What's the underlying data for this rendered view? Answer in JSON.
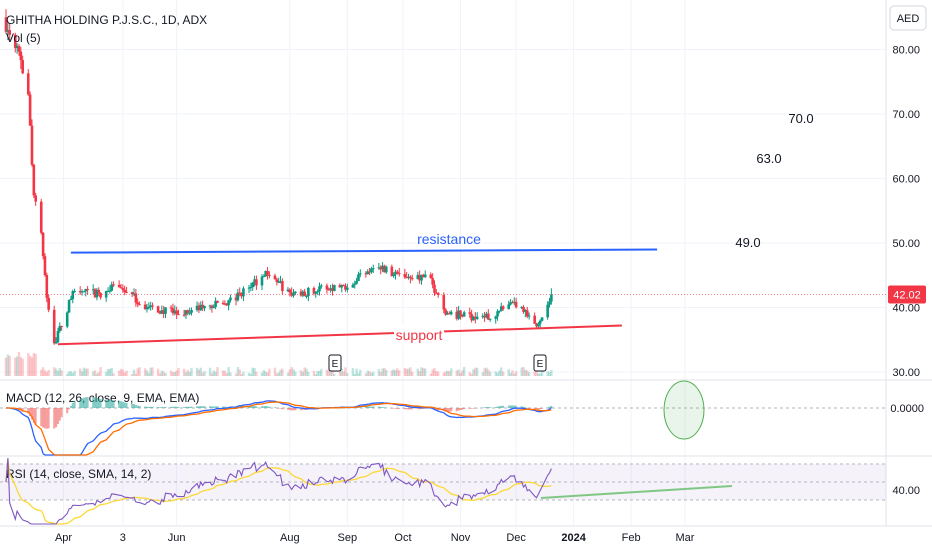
{
  "header": {
    "symbol_title": "GHITHA HOLDING P.J.S.C., 1D, ADX",
    "volume_label": "Vol (5)",
    "currency": "AED"
  },
  "chart_data": [
    {
      "type": "candlestick",
      "series_name": "GHITHA HOLDING P.J.S.C.",
      "interval": "1D",
      "exchange": "ADX",
      "currency": "AED",
      "last_price": "42.02",
      "ylim": [
        28,
        86
      ],
      "y_ticks": [
        "80.00",
        "70.00",
        "60.00",
        "50.00",
        "40.00",
        "30.00"
      ],
      "x_ticks": [
        "Apr",
        "3",
        "Jun",
        "Aug",
        "Sep",
        "Oct",
        "Nov",
        "Dec",
        "2024",
        "Feb",
        "Mar"
      ],
      "approx_close_path": [
        {
          "date": "2023-03-01",
          "close": 84.0
        },
        {
          "date": "2023-03-08",
          "close": 80.5
        },
        {
          "date": "2023-03-13",
          "close": 72.0
        },
        {
          "date": "2023-03-16",
          "close": 58.0
        },
        {
          "date": "2023-03-20",
          "close": 51.0
        },
        {
          "date": "2023-03-23",
          "close": 42.0
        },
        {
          "date": "2023-03-27",
          "close": 34.5
        },
        {
          "date": "2023-04-03",
          "close": 39.5
        },
        {
          "date": "2023-04-06",
          "close": 42.5
        },
        {
          "date": "2023-04-20",
          "close": 42.0
        },
        {
          "date": "2023-05-01",
          "close": 43.5
        },
        {
          "date": "2023-05-15",
          "close": 40.0
        },
        {
          "date": "2023-06-01",
          "close": 39.0
        },
        {
          "date": "2023-07-01",
          "close": 41.0
        },
        {
          "date": "2023-07-20",
          "close": 45.5
        },
        {
          "date": "2023-08-01",
          "close": 42.0
        },
        {
          "date": "2023-08-20",
          "close": 43.0
        },
        {
          "date": "2023-09-01",
          "close": 43.5
        },
        {
          "date": "2023-09-15",
          "close": 46.5
        },
        {
          "date": "2023-10-01",
          "close": 45.0
        },
        {
          "date": "2023-10-15",
          "close": 44.5
        },
        {
          "date": "2023-10-25",
          "close": 39.0
        },
        {
          "date": "2023-11-15",
          "close": 38.5
        },
        {
          "date": "2023-12-01",
          "close": 40.5
        },
        {
          "date": "2023-12-12",
          "close": 37.0
        },
        {
          "date": "2023-12-20",
          "close": 42.02
        }
      ],
      "lines": [
        {
          "label": "resistance",
          "color": "#2962ff",
          "start": {
            "date": "2023-04-05",
            "price": 48.5
          },
          "end": {
            "date": "2024-02-15",
            "price": 49.0
          }
        },
        {
          "label": "support",
          "color": "#f23645",
          "start": {
            "date": "2023-03-29",
            "price": 34.3
          },
          "end": {
            "date": "2024-01-27",
            "price": 37.2
          }
        }
      ],
      "targets": [
        "49.0",
        "63.0",
        "70.0"
      ],
      "earnings_markers": [
        "E",
        "E"
      ]
    },
    {
      "type": "line",
      "title": "MACD (12, 26, close, 9, EMA, EMA)",
      "zero_label": "0.0000",
      "series": [
        {
          "name": "MACD",
          "color": "#2962ff"
        },
        {
          "name": "Signal",
          "color": "#ff6d00"
        }
      ],
      "histogram_colors": {
        "positive": "#26a69a",
        "negative": "#ef5350"
      },
      "annotation": "ellipse"
    },
    {
      "type": "line",
      "title": "RSI (14, close, SMA, 14, 2)",
      "level_label": "40.00",
      "series": [
        {
          "name": "RSI",
          "color": "#7e57c2"
        },
        {
          "name": "RSI-based MA",
          "color": "#fdd835"
        }
      ],
      "trendline_color": "#81c784"
    }
  ],
  "colors": {
    "up": "#089981",
    "down": "#f23645",
    "price_tag": "#f23645"
  }
}
